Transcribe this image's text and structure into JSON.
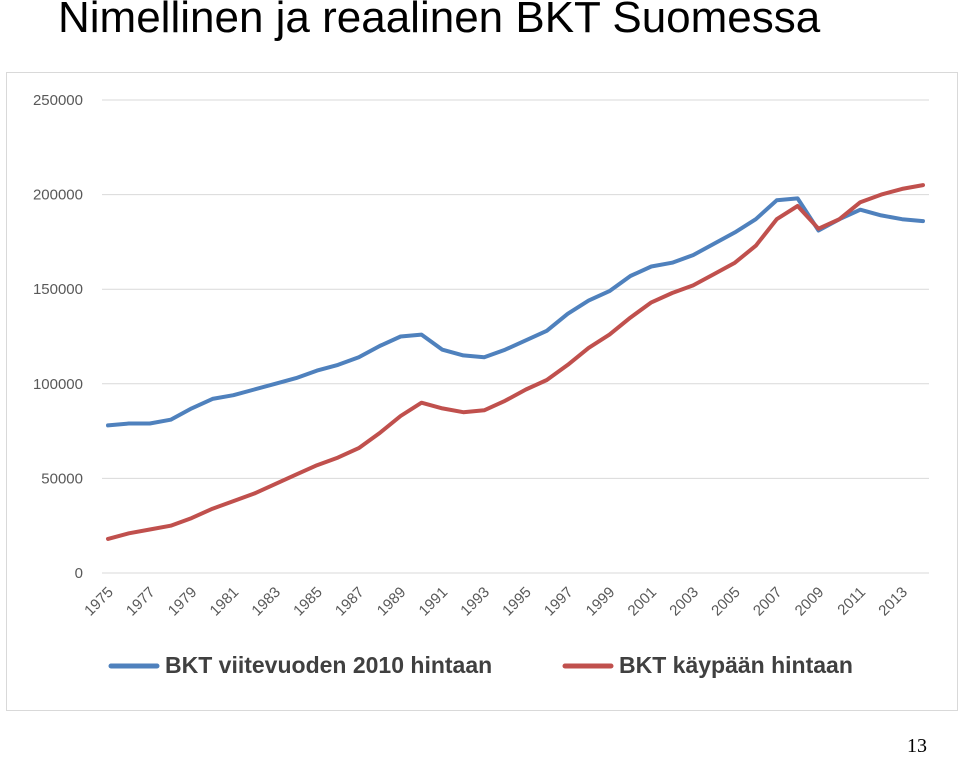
{
  "slide": {
    "title": "Nimellinen ja reaalinen BKT Suomessa",
    "page_number": "13"
  },
  "chart_data": {
    "type": "line",
    "title": "",
    "xlabel": "",
    "ylabel": "",
    "ylim": [
      0,
      250000
    ],
    "yticks": [
      0,
      50000,
      100000,
      150000,
      200000,
      250000
    ],
    "ytick_labels": [
      "0",
      "50000",
      "100000",
      "150000",
      "200000",
      "250000"
    ],
    "xtick_labels": [
      "1975",
      "1977",
      "1979",
      "1981",
      "1983",
      "1985",
      "1987",
      "1989",
      "1991",
      "1993",
      "1995",
      "1997",
      "1999",
      "2001",
      "2003",
      "2005",
      "2007",
      "2009",
      "2011",
      "2013"
    ],
    "grid": true,
    "legend_position": "bottom",
    "x": [
      1975,
      1976,
      1977,
      1978,
      1979,
      1980,
      1981,
      1982,
      1983,
      1984,
      1985,
      1986,
      1987,
      1988,
      1989,
      1990,
      1991,
      1992,
      1993,
      1994,
      1995,
      1996,
      1997,
      1998,
      1999,
      2000,
      2001,
      2002,
      2003,
      2004,
      2005,
      2006,
      2007,
      2008,
      2009,
      2010,
      2011,
      2012,
      2013,
      2014
    ],
    "series": [
      {
        "name": "BKT viitevuoden 2010 hintaan",
        "color": "#4f81bd",
        "values": [
          78000,
          79000,
          79000,
          81000,
          87000,
          92000,
          94000,
          97000,
          100000,
          103000,
          107000,
          110000,
          114000,
          120000,
          125000,
          126000,
          118000,
          115000,
          114000,
          118000,
          123000,
          128000,
          137000,
          144000,
          149000,
          157000,
          162000,
          164000,
          168000,
          174000,
          180000,
          187000,
          197000,
          198000,
          181000,
          187000,
          192000,
          189000,
          187000,
          186000
        ]
      },
      {
        "name": "BKT käypään hintaan",
        "color": "#c0504d",
        "values": [
          18000,
          21000,
          23000,
          25000,
          29000,
          34000,
          38000,
          42000,
          47000,
          52000,
          57000,
          61000,
          66000,
          74000,
          83000,
          90000,
          87000,
          85000,
          86000,
          91000,
          97000,
          102000,
          110000,
          119000,
          126000,
          135000,
          143000,
          148000,
          152000,
          158000,
          164000,
          173000,
          187000,
          194000,
          182000,
          187000,
          196000,
          200000,
          203000,
          205000
        ]
      }
    ]
  }
}
